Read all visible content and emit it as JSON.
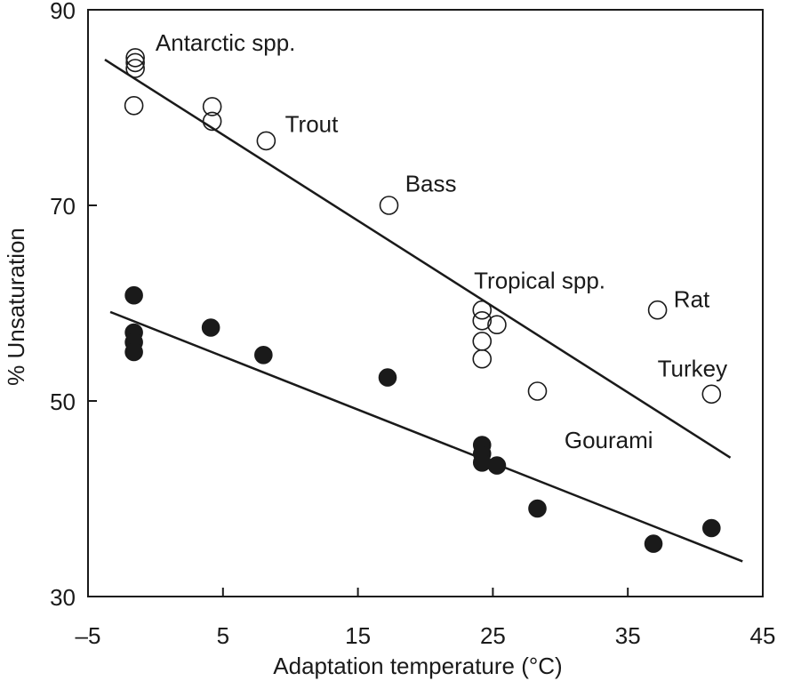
{
  "chart_data": {
    "type": "scatter",
    "title": "",
    "xlabel": "Adaptation temperature (°C)",
    "ylabel": "% Unsaturation",
    "xlim": [
      -5,
      45
    ],
    "ylim": [
      30,
      90
    ],
    "xticks": [
      "–5",
      "5",
      "15",
      "25",
      "35",
      "45"
    ],
    "xtick_values": [
      -5,
      5,
      15,
      25,
      35,
      45
    ],
    "yticks": [
      "30",
      "50",
      "70",
      "90"
    ],
    "ytick_values": [
      30,
      50,
      70,
      90
    ],
    "grid": false,
    "series": [
      {
        "name": "open",
        "marker": "open-circle",
        "points": [
          [
            -1.5,
            85.1
          ],
          [
            -1.5,
            84.6
          ],
          [
            -1.5,
            84.0
          ],
          [
            -1.6,
            80.2
          ],
          [
            4.2,
            80.1
          ],
          [
            4.2,
            78.6
          ],
          [
            8.2,
            76.6
          ],
          [
            17.3,
            70.0
          ],
          [
            24.2,
            59.3
          ],
          [
            24.2,
            58.2
          ],
          [
            24.2,
            56.1
          ],
          [
            24.2,
            54.3
          ],
          [
            25.3,
            57.8
          ],
          [
            28.3,
            51.0
          ],
          [
            37.2,
            59.3
          ],
          [
            41.2,
            50.7
          ]
        ],
        "fit_line": [
          [
            -3.75,
            84.9
          ],
          [
            42.6,
            44.2
          ]
        ]
      },
      {
        "name": "filled",
        "marker": "filled-circle",
        "points": [
          [
            -1.6,
            60.8
          ],
          [
            -1.6,
            57.0
          ],
          [
            -1.6,
            56.0
          ],
          [
            -1.6,
            55.0
          ],
          [
            4.1,
            57.5
          ],
          [
            8.0,
            54.7
          ],
          [
            17.2,
            52.4
          ],
          [
            24.2,
            45.5
          ],
          [
            24.2,
            44.6
          ],
          [
            24.2,
            43.7
          ],
          [
            25.3,
            43.4
          ],
          [
            28.3,
            39.0
          ],
          [
            36.9,
            35.4
          ],
          [
            41.2,
            37.0
          ]
        ],
        "fit_line": [
          [
            -3.35,
            59.1
          ],
          [
            43.5,
            33.6
          ]
        ]
      }
    ],
    "annotations": [
      {
        "text": "Antarctic spp.",
        "x": 0.0,
        "y": 85.8
      },
      {
        "text": "Trout",
        "x": 9.6,
        "y": 77.5
      },
      {
        "text": "Bass",
        "x": 18.5,
        "y": 71.4
      },
      {
        "text": "Tropical spp.",
        "x": 23.6,
        "y": 61.5
      },
      {
        "text": "Rat",
        "x": 38.4,
        "y": 59.6
      },
      {
        "text": "Turkey",
        "x": 37.2,
        "y": 52.5
      },
      {
        "text": "Gourami",
        "x": 30.3,
        "y": 45.2
      }
    ]
  }
}
